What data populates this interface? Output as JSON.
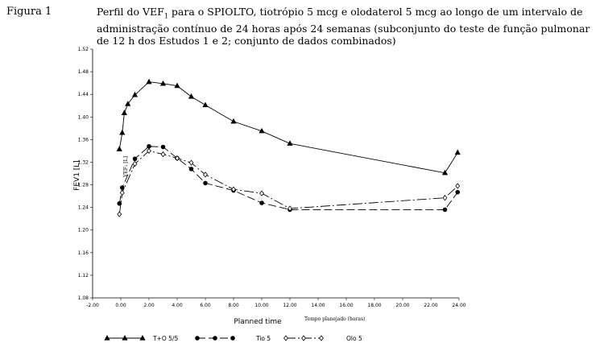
{
  "figure": {
    "label": "Figura 1",
    "title_pre": "Perfil do VEF",
    "title_sub": "1",
    "title_post": " para o SPIOLTO, tiotrópio 5 mcg e olodaterol 5 mcg ao longo de um intervalo de administração contínuo de 24 horas após 24 semanas (subconjunto do teste de função pulmonar de 12 h dos Estudos 1 e 2; conjunto de dados combinados)"
  },
  "chart_data": {
    "type": "line",
    "ylabel": "FEV1 [L]",
    "ylabel_overlay": "VEF₁ [L]",
    "xlabel": "Planned time",
    "xlabel_overlay": "Tempo planejado (horas)",
    "ylim": [
      1.08,
      1.52
    ],
    "xlim": [
      -2,
      24
    ],
    "yticks": [
      "1.08",
      "1.12",
      "1.16",
      "1.20",
      "1.24",
      "1.28",
      "1.32",
      "1.36",
      "1.40",
      "1.44",
      "1.48",
      "1.52"
    ],
    "xticks": [
      "-2.00",
      "0.00",
      "2.00",
      "4.00",
      "6.00",
      "8.00",
      "10.00",
      "12.00",
      "14.00",
      "16.00",
      "18.00",
      "20.00",
      "22.00",
      "24.00"
    ],
    "legend_position": "bottom",
    "series": [
      {
        "name": "T+O 5/5",
        "marker": "triangle",
        "dash": "",
        "x": [
          -0.1,
          0.1,
          0.25,
          0.5,
          1,
          2,
          3,
          4,
          5,
          6,
          8,
          10,
          12,
          23,
          23.9
        ],
        "y": [
          1.343,
          1.372,
          1.407,
          1.423,
          1.439,
          1.462,
          1.459,
          1.455,
          1.436,
          1.421,
          1.392,
          1.375,
          1.353,
          1.301,
          1.337
        ]
      },
      {
        "name": "Tio 5",
        "marker": "circle",
        "dash": "10,4",
        "x": [
          -0.1,
          0.1,
          1,
          2,
          3,
          4,
          5,
          6,
          8,
          10,
          12,
          23,
          23.9
        ],
        "y": [
          1.247,
          1.275,
          1.326,
          1.348,
          1.347,
          1.327,
          1.308,
          1.283,
          1.27,
          1.248,
          1.236,
          1.236,
          1.267
        ]
      },
      {
        "name": "Olo 5",
        "marker": "diamond",
        "dash": "12,3,2,3",
        "x": [
          -0.1,
          0.1,
          1,
          2,
          3,
          4,
          5,
          6,
          8,
          10,
          12,
          23,
          23.9
        ],
        "y": [
          1.228,
          1.266,
          1.317,
          1.34,
          1.334,
          1.327,
          1.319,
          1.298,
          1.272,
          1.265,
          1.238,
          1.257,
          1.278
        ]
      }
    ]
  }
}
